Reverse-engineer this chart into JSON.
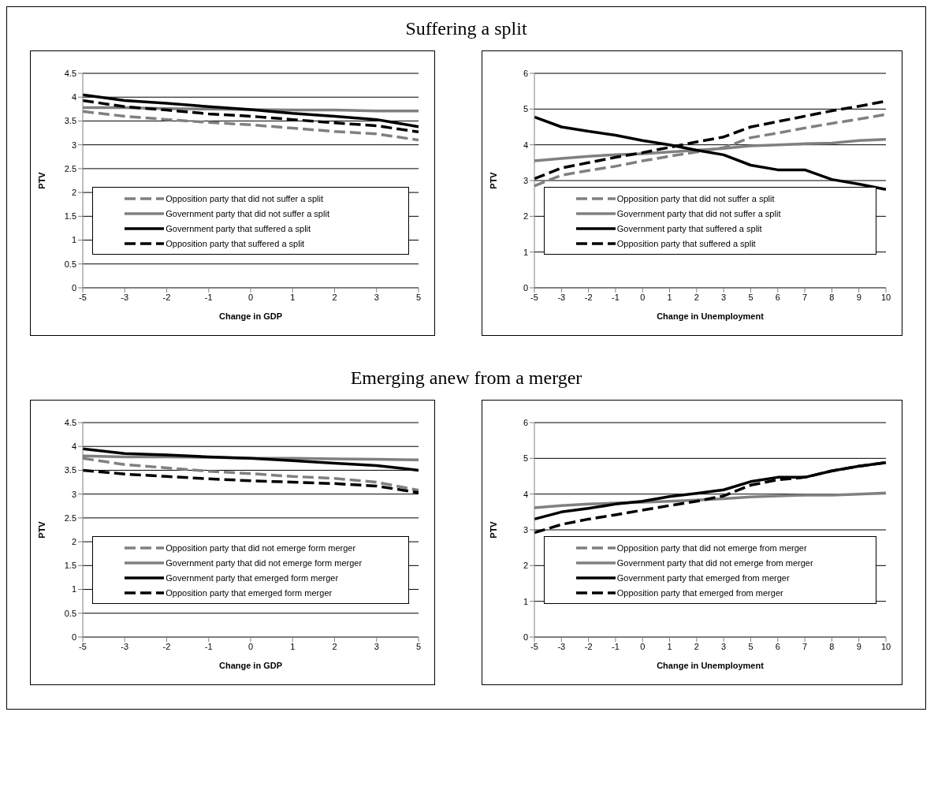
{
  "chart_data": [
    {
      "type": "line",
      "title": "Suffering a split",
      "xlabel": "Change in GDP",
      "ylabel": "PTV",
      "categories": [
        "-5",
        "-3",
        "-2",
        "-1",
        "0",
        "1",
        "2",
        "3",
        "5"
      ],
      "ylim": [
        0,
        4.5
      ],
      "yticks": [
        0,
        0.5,
        1,
        1.5,
        2,
        2.5,
        3,
        3.5,
        4,
        4.5
      ],
      "grid": "y",
      "legend": "bottom",
      "marker": "none",
      "series": [
        {
          "name": "Opposition party that did not suffer a split",
          "color": "#808080",
          "line_style": "dashed",
          "values": [
            3.7,
            3.6,
            3.53,
            3.47,
            3.42,
            3.35,
            3.28,
            3.23,
            3.1
          ]
        },
        {
          "name": "Government party that did not suffer a split",
          "color": "#808080",
          "line_style": "solid",
          "values": [
            3.78,
            3.78,
            3.76,
            3.75,
            3.74,
            3.73,
            3.73,
            3.71,
            3.71
          ]
        },
        {
          "name": "Government party that suffered a split",
          "color": "#000000",
          "line_style": "solid",
          "values": [
            4.05,
            3.93,
            3.87,
            3.8,
            3.74,
            3.66,
            3.6,
            3.53,
            3.38
          ]
        },
        {
          "name": "Opposition party that suffered a split",
          "color": "#000000",
          "line_style": "dashed",
          "values": [
            3.93,
            3.8,
            3.73,
            3.65,
            3.6,
            3.53,
            3.46,
            3.4,
            3.27
          ]
        }
      ]
    },
    {
      "type": "line",
      "xlabel": "Change in Unemployment",
      "ylabel": "PTV",
      "categories": [
        "-5",
        "-3",
        "-2",
        "-1",
        "0",
        "1",
        "2",
        "3",
        "5",
        "6",
        "7",
        "8",
        "9",
        "10"
      ],
      "ylim": [
        0,
        6
      ],
      "yticks": [
        0,
        1,
        2,
        3,
        4,
        5,
        6
      ],
      "grid": "y",
      "legend": "bottom",
      "marker": "none",
      "series": [
        {
          "name": "Opposition party that did not suffer a split",
          "color": "#808080",
          "line_style": "dashed",
          "values": [
            2.85,
            3.15,
            3.28,
            3.4,
            3.55,
            3.68,
            3.8,
            3.92,
            4.2,
            4.33,
            4.47,
            4.6,
            4.72,
            4.85
          ]
        },
        {
          "name": "Government party that did not suffer a split",
          "color": "#808080",
          "line_style": "solid",
          "values": [
            3.55,
            3.62,
            3.68,
            3.72,
            3.75,
            3.8,
            3.85,
            3.9,
            3.97,
            4.0,
            4.03,
            4.05,
            4.12,
            4.15
          ]
        },
        {
          "name": "Government party that suffered a split",
          "color": "#000000",
          "line_style": "solid",
          "values": [
            4.78,
            4.5,
            4.38,
            4.27,
            4.12,
            4.0,
            3.85,
            3.72,
            3.43,
            3.3,
            3.3,
            3.03,
            2.9,
            2.75
          ]
        },
        {
          "name": "Opposition party that suffered a split",
          "color": "#000000",
          "line_style": "dashed",
          "values": [
            3.05,
            3.35,
            3.5,
            3.65,
            3.78,
            3.93,
            4.08,
            4.22,
            4.5,
            4.65,
            4.8,
            4.95,
            5.08,
            5.22
          ]
        }
      ]
    },
    {
      "type": "line",
      "title": "Emerging anew from a merger",
      "xlabel": "Change in GDP",
      "ylabel": "PTV",
      "categories": [
        "-5",
        "-3",
        "-2",
        "-1",
        "0",
        "1",
        "2",
        "3",
        "5"
      ],
      "ylim": [
        0,
        4.5
      ],
      "yticks": [
        0,
        0.5,
        1,
        1.5,
        2,
        2.5,
        3,
        3.5,
        4,
        4.5
      ],
      "grid": "y",
      "legend": "bottom",
      "marker": "none",
      "series": [
        {
          "name": "Opposition party that did not emerge form merger",
          "color": "#808080",
          "line_style": "dashed",
          "values": [
            3.75,
            3.62,
            3.55,
            3.48,
            3.43,
            3.37,
            3.33,
            3.25,
            3.08
          ]
        },
        {
          "name": "Government party that did not emerge form merger",
          "color": "#808080",
          "line_style": "solid",
          "values": [
            3.8,
            3.78,
            3.78,
            3.77,
            3.75,
            3.75,
            3.74,
            3.73,
            3.72
          ]
        },
        {
          "name": "Government party that emerged form merger",
          "color": "#000000",
          "line_style": "solid",
          "values": [
            3.95,
            3.85,
            3.82,
            3.78,
            3.75,
            3.7,
            3.65,
            3.6,
            3.5
          ]
        },
        {
          "name": "Opposition party that emerged form merger",
          "color": "#000000",
          "line_style": "dashed",
          "values": [
            3.5,
            3.42,
            3.37,
            3.32,
            3.28,
            3.25,
            3.22,
            3.17,
            3.03
          ]
        }
      ]
    },
    {
      "type": "line",
      "xlabel": "Change in Unemployment",
      "ylabel": "PTV",
      "categories": [
        "-5",
        "-3",
        "-2",
        "-1",
        "0",
        "1",
        "2",
        "3",
        "5",
        "6",
        "7",
        "8",
        "9",
        "10"
      ],
      "ylim": [
        0,
        6
      ],
      "yticks": [
        0,
        1,
        2,
        3,
        4,
        5,
        6
      ],
      "grid": "y",
      "legend": "bottom",
      "marker": "none",
      "series": [
        {
          "name": "Opposition party that did not emerge from merger",
          "color": "#808080",
          "line_style": "dashed",
          "values": [
            null,
            null,
            null,
            null,
            null,
            null,
            null,
            null,
            null,
            null,
            null,
            null,
            null,
            null
          ]
        },
        {
          "name": "Government party that did not emerge from merger",
          "color": "#808080",
          "line_style": "solid",
          "values": [
            3.62,
            3.68,
            3.72,
            3.75,
            3.77,
            3.8,
            3.83,
            3.87,
            3.92,
            3.95,
            3.97,
            3.97,
            4.0,
            4.03
          ]
        },
        {
          "name": "Government party that emerged from merger",
          "color": "#000000",
          "line_style": "solid",
          "values": [
            3.3,
            3.5,
            3.6,
            3.72,
            3.8,
            3.93,
            4.02,
            4.12,
            4.35,
            4.47,
            4.47,
            4.65,
            4.78,
            4.88
          ]
        },
        {
          "name": "Opposition party that emerged from merger",
          "color": "#000000",
          "line_style": "dashed",
          "values": [
            2.92,
            3.15,
            3.3,
            3.42,
            3.55,
            3.68,
            3.8,
            3.95,
            4.25,
            4.4,
            4.47,
            4.65,
            4.78,
            4.88
          ]
        }
      ]
    }
  ]
}
